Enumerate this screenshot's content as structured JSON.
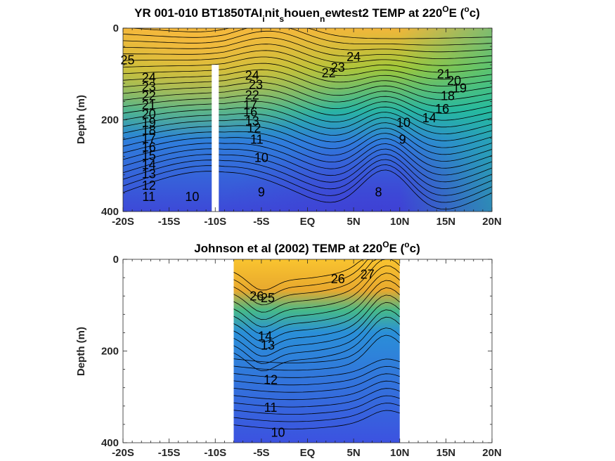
{
  "chart_data": [
    {
      "type": "heatmap",
      "title_main": "YR 001-010 BT1850TAI",
      "title_parts": [
        {
          "text": "YR 001-010 BT1850TAI",
          "sub": false
        },
        {
          "text": "i",
          "sub": true
        },
        {
          "text": "nit",
          "sub": false
        },
        {
          "text": "s",
          "sub": true
        },
        {
          "text": "houen",
          "sub": false
        },
        {
          "text": "n",
          "sub": true
        },
        {
          "text": "ewtest2 TEMP at 220",
          "sub": false
        },
        {
          "text": "O",
          "sup": true
        },
        {
          "text": "E (",
          "sub": false
        },
        {
          "text": "o",
          "sup": true
        },
        {
          "text": "c)",
          "sub": false
        }
      ],
      "ylabel": "Depth (m)",
      "xlim": [
        -20,
        20
      ],
      "ylim": [
        0,
        400
      ],
      "x_ticks": [
        "-20S",
        "-15S",
        "-10S",
        "-5S",
        "EQ",
        "5N",
        "10N",
        "15N",
        "20N"
      ],
      "y_ticks": [
        "0",
        "200",
        "400"
      ],
      "data_x_range": [
        -20,
        20
      ],
      "masked_column_x": -10,
      "masked_column_depth_start": 80,
      "contour_labels": [
        {
          "text": "25",
          "x": -19.5,
          "y": 72
        },
        {
          "text": "24",
          "x": -17.2,
          "y": 110
        },
        {
          "text": "23",
          "x": -17.2,
          "y": 130
        },
        {
          "text": "22",
          "x": -17.2,
          "y": 150
        },
        {
          "text": "21",
          "x": -17.2,
          "y": 170
        },
        {
          "text": "20",
          "x": -17.2,
          "y": 190
        },
        {
          "text": "19",
          "x": -17.2,
          "y": 208
        },
        {
          "text": "18",
          "x": -17.2,
          "y": 225
        },
        {
          "text": "17",
          "x": -17.2,
          "y": 243
        },
        {
          "text": "16",
          "x": -17.2,
          "y": 262
        },
        {
          "text": "15",
          "x": -17.2,
          "y": 280
        },
        {
          "text": "14",
          "x": -17.2,
          "y": 300
        },
        {
          "text": "13",
          "x": -17.2,
          "y": 320
        },
        {
          "text": "12",
          "x": -17.2,
          "y": 345
        },
        {
          "text": "11",
          "x": -17.2,
          "y": 370
        },
        {
          "text": "10",
          "x": -12.5,
          "y": 370
        },
        {
          "text": "24",
          "x": -6.0,
          "y": 105
        },
        {
          "text": "23",
          "x": -5.6,
          "y": 125
        },
        {
          "text": "22",
          "x": -6.0,
          "y": 148
        },
        {
          "text": "17",
          "x": -6.2,
          "y": 170
        },
        {
          "text": "16",
          "x": -6.2,
          "y": 185
        },
        {
          "text": "13",
          "x": -6.0,
          "y": 205
        },
        {
          "text": "12",
          "x": -5.8,
          "y": 220
        },
        {
          "text": "11",
          "x": -5.5,
          "y": 245
        },
        {
          "text": "10",
          "x": -5.0,
          "y": 285
        },
        {
          "text": "9",
          "x": -5.0,
          "y": 360
        },
        {
          "text": "24",
          "x": 5.0,
          "y": 65
        },
        {
          "text": "23",
          "x": 3.3,
          "y": 88
        },
        {
          "text": "22",
          "x": 2.3,
          "y": 100
        },
        {
          "text": "9",
          "x": 10.3,
          "y": 245
        },
        {
          "text": "8",
          "x": 7.7,
          "y": 360
        },
        {
          "text": "21",
          "x": 14.8,
          "y": 102
        },
        {
          "text": "20",
          "x": 15.9,
          "y": 117
        },
        {
          "text": "19",
          "x": 16.5,
          "y": 133
        },
        {
          "text": "18",
          "x": 15.2,
          "y": 150
        },
        {
          "text": "16",
          "x": 14.6,
          "y": 178
        },
        {
          "text": "14",
          "x": 13.2,
          "y": 198
        },
        {
          "text": "10",
          "x": 10.4,
          "y": 208
        }
      ]
    },
    {
      "type": "heatmap",
      "title_parts": [
        {
          "text": "Johnson et al (2002) TEMP at 220",
          "sub": false
        },
        {
          "text": "O",
          "sup": true
        },
        {
          "text": "E (",
          "sub": false
        },
        {
          "text": "o",
          "sup": true
        },
        {
          "text": "c)",
          "sub": false
        }
      ],
      "ylabel": "Depth (m)",
      "xlim": [
        -20,
        20
      ],
      "ylim": [
        0,
        400
      ],
      "x_ticks": [
        "-20S",
        "-15S",
        "-10S",
        "-5S",
        "EQ",
        "5N",
        "10N",
        "15N",
        "20N"
      ],
      "y_ticks": [
        "0",
        "200",
        "400"
      ],
      "data_x_range": [
        -8,
        10
      ],
      "contour_labels": [
        {
          "text": "27",
          "x": 6.5,
          "y": 35
        },
        {
          "text": "26",
          "x": 3.3,
          "y": 45
        },
        {
          "text": "26",
          "x": -5.5,
          "y": 82
        },
        {
          "text": "25",
          "x": -4.3,
          "y": 86
        },
        {
          "text": "14",
          "x": -4.6,
          "y": 170
        },
        {
          "text": "13",
          "x": -4.3,
          "y": 190
        },
        {
          "text": "12",
          "x": -4.0,
          "y": 265
        },
        {
          "text": "11",
          "x": -4.0,
          "y": 325
        },
        {
          "text": "10",
          "x": -3.2,
          "y": 380
        }
      ]
    }
  ]
}
